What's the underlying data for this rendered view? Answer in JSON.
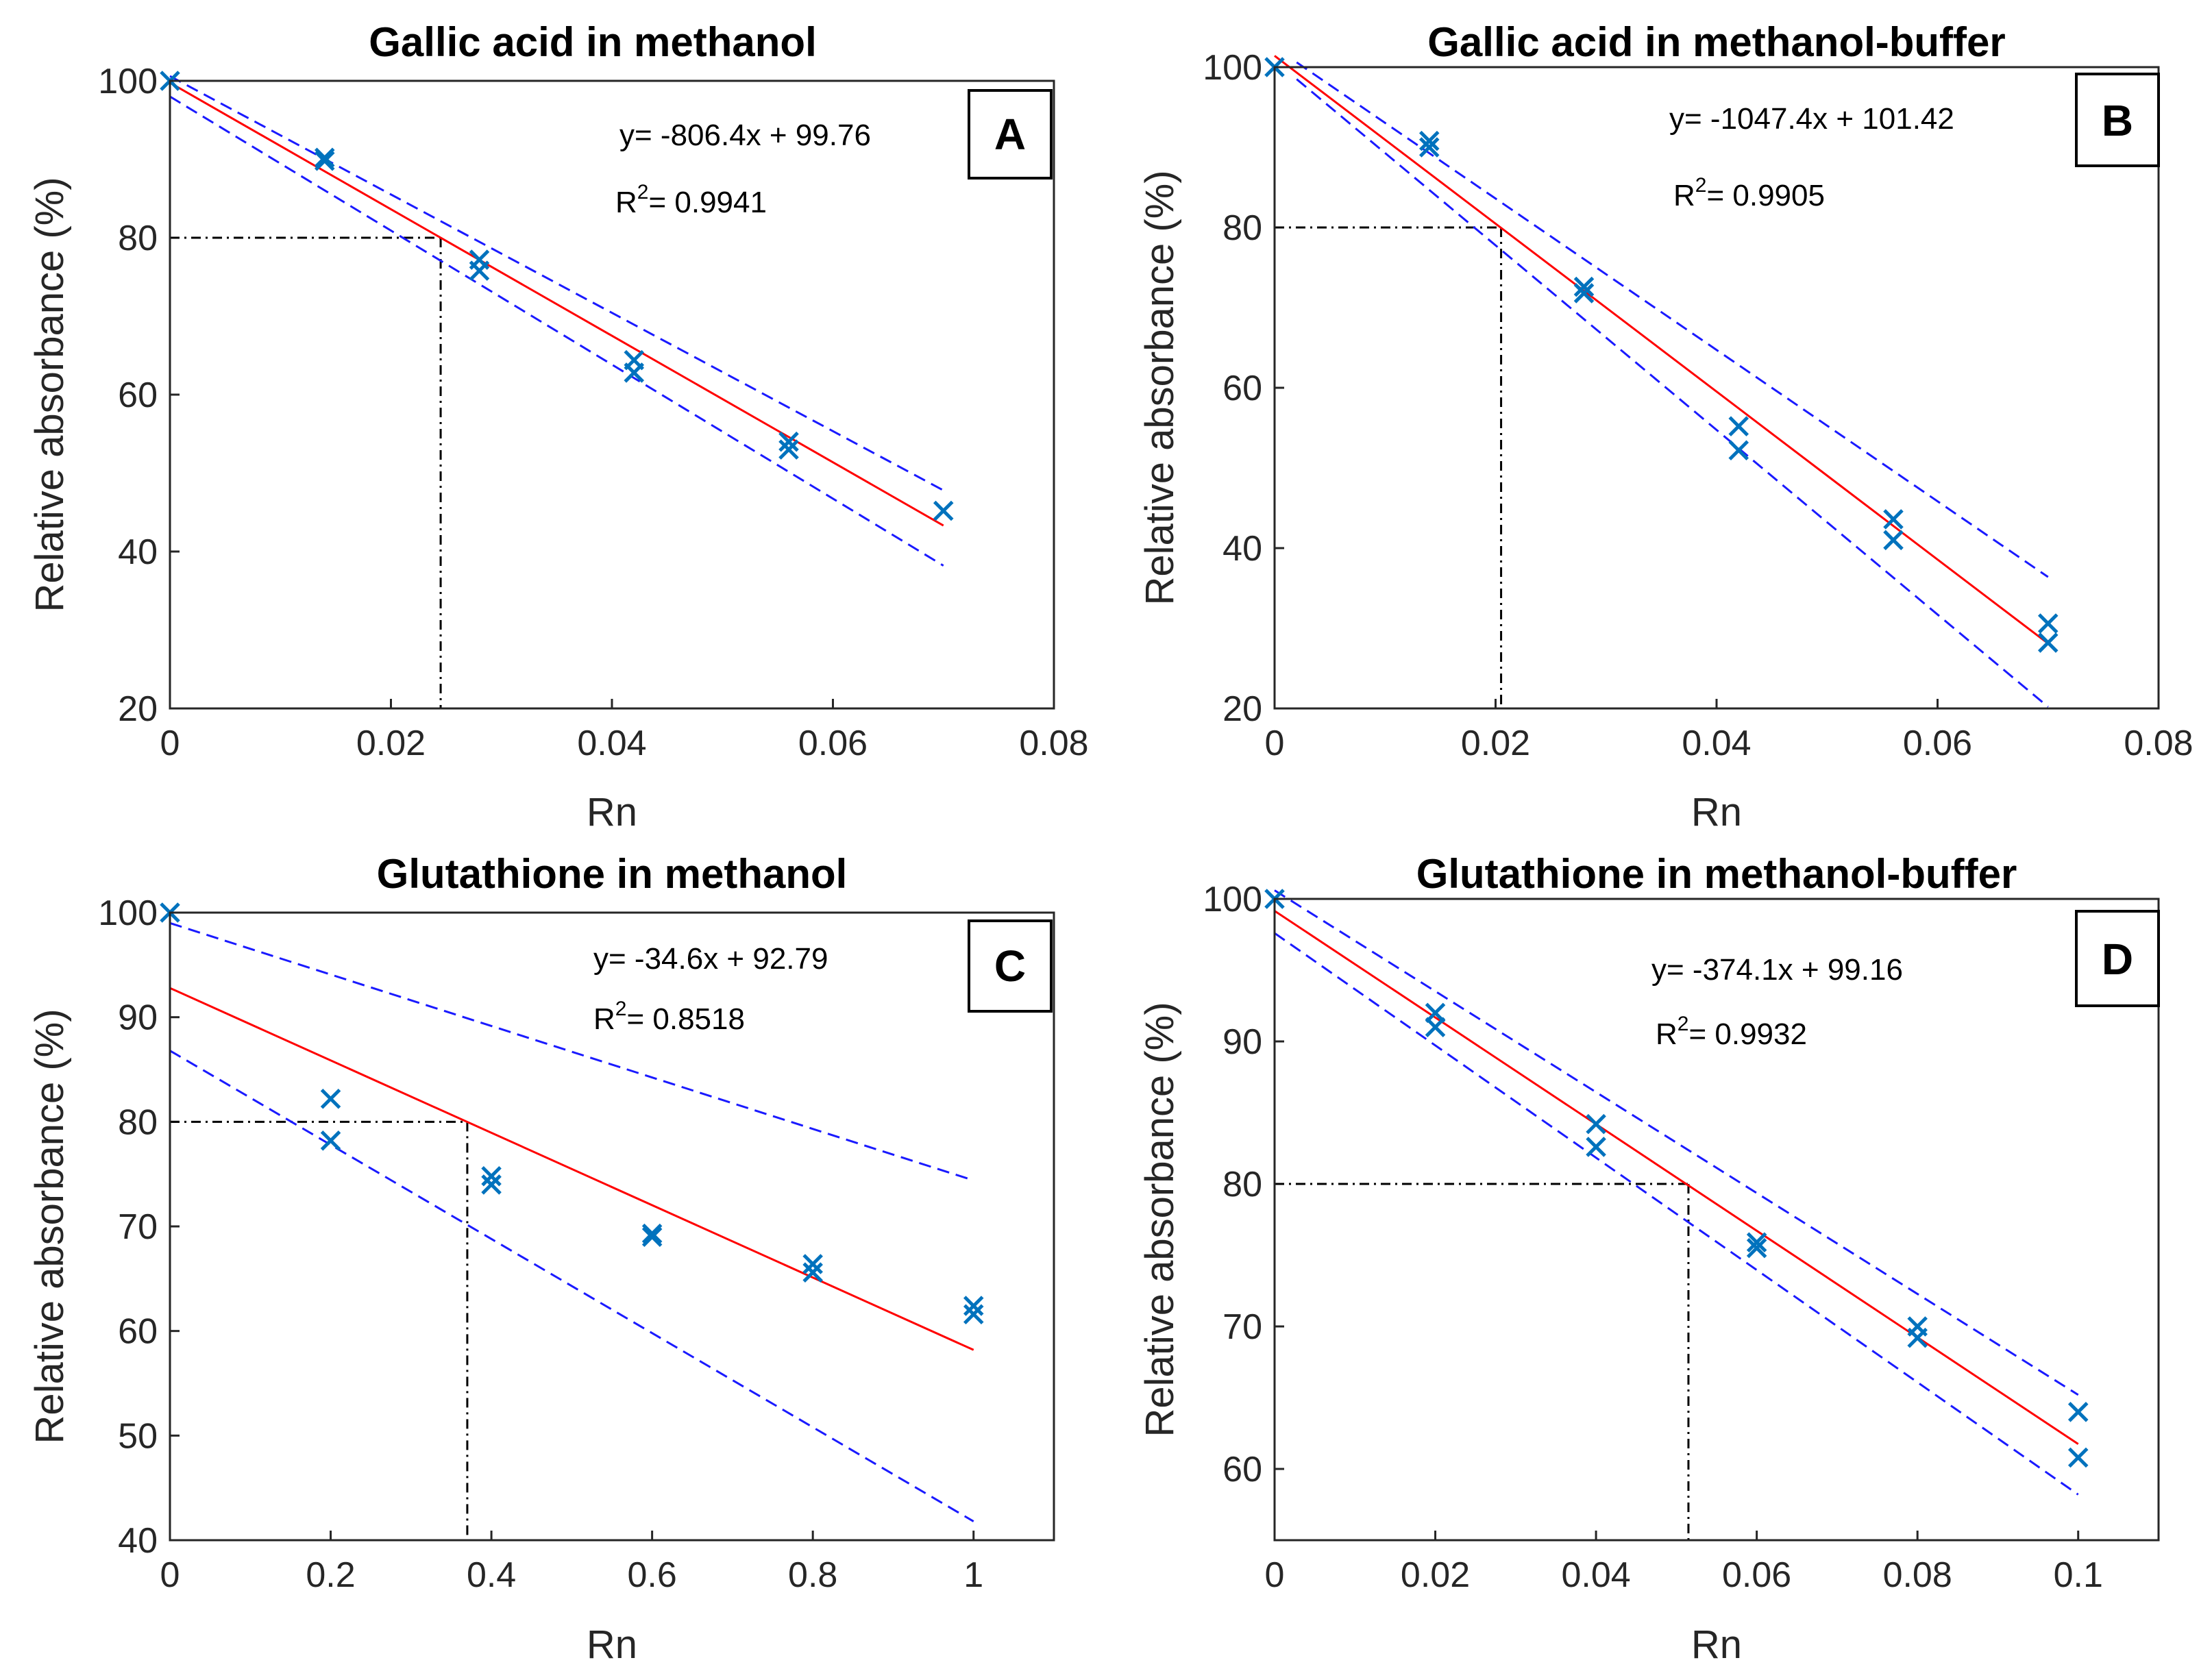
{
  "colors": {
    "marker": "#0072BD",
    "fit_line": "#ff0000",
    "bound_line": "#1a1aff",
    "guide_line": "#000000",
    "axis": "#262626"
  },
  "chart_data": [
    {
      "panel": "A",
      "type": "scatter",
      "title": "Gallic acid in methanol",
      "xlabel": "Rn",
      "ylabel": "Relative absorbance (%)",
      "xlim": [
        0,
        0.08
      ],
      "ylim": [
        20,
        100
      ],
      "xticks": [
        0,
        0.02,
        0.04,
        0.06,
        0.08
      ],
      "xtick_labels": [
        "0",
        "0.02",
        "0.04",
        "0.06",
        "0.08"
      ],
      "yticks": [
        20,
        40,
        60,
        80,
        100
      ],
      "ytick_labels": [
        "20",
        "40",
        "60",
        "80",
        "100"
      ],
      "points": [
        [
          0,
          100
        ],
        [
          0.014,
          90.2
        ],
        [
          0.014,
          89.8
        ],
        [
          0.028,
          77.2
        ],
        [
          0.028,
          75.8
        ],
        [
          0.042,
          64.4
        ],
        [
          0.042,
          62.8
        ],
        [
          0.056,
          54.0
        ],
        [
          0.056,
          53.0
        ],
        [
          0.07,
          45.2
        ]
      ],
      "fit": {
        "slope": -806.4,
        "intercept": 99.76,
        "x_range": [
          0,
          0.07
        ]
      },
      "lower_bound": [
        [
          0,
          98.0
        ],
        [
          0.07,
          38.2
        ]
      ],
      "upper_bound": [
        [
          0,
          100.6
        ],
        [
          0.07,
          47.8
        ]
      ],
      "guide": {
        "x": 0.0245,
        "y": 80
      },
      "annotations": {
        "equation": "y= -806.4x + 99.76",
        "r2_label": "R",
        "r2_sup": "2",
        "r2_value": "= 0.9941"
      }
    },
    {
      "panel": "B",
      "type": "scatter",
      "title": "Gallic acid in methanol-buffer",
      "xlabel": "Rn",
      "ylabel": "Relative absorbance (%)",
      "xlim": [
        0,
        0.08
      ],
      "ylim": [
        20,
        100
      ],
      "xticks": [
        0,
        0.02,
        0.04,
        0.06,
        0.08
      ],
      "xtick_labels": [
        "0",
        "0.02",
        "0.04",
        "0.06",
        "0.08"
      ],
      "yticks": [
        20,
        40,
        60,
        80,
        100
      ],
      "ytick_labels": [
        "20",
        "40",
        "60",
        "80",
        "100"
      ],
      "points": [
        [
          0,
          100
        ],
        [
          0.014,
          90.8
        ],
        [
          0.014,
          90.0
        ],
        [
          0.028,
          72.6
        ],
        [
          0.028,
          71.8
        ],
        [
          0.042,
          55.2
        ],
        [
          0.042,
          52.2
        ],
        [
          0.056,
          43.6
        ],
        [
          0.056,
          41.0
        ],
        [
          0.07,
          30.6
        ],
        [
          0.07,
          28.2
        ]
      ],
      "fit": {
        "slope": -1047.4,
        "intercept": 101.42,
        "x_range": [
          0,
          0.07
        ]
      },
      "lower_bound": [
        [
          0.002,
          98.5
        ],
        [
          0.07,
          20.2
        ]
      ],
      "upper_bound": [
        [
          0.002,
          100.6
        ],
        [
          0.07,
          36.4
        ]
      ],
      "guide": {
        "x": 0.0205,
        "y": 80
      },
      "annotations": {
        "equation": "y= -1047.4x + 101.42",
        "r2_label": "R",
        "r2_sup": "2",
        "r2_value": "= 0.9905"
      }
    },
    {
      "panel": "C",
      "type": "scatter",
      "title": "Glutathione in methanol",
      "xlabel": "Rn",
      "ylabel": "Relative absorbance (%)",
      "xlim": [
        0,
        1.1
      ],
      "ylim": [
        40,
        100
      ],
      "xticks": [
        0,
        0.2,
        0.4,
        0.6,
        0.8,
        1
      ],
      "xtick_labels": [
        "0",
        "0.2",
        "0.4",
        "0.6",
        "0.8",
        "1"
      ],
      "yticks": [
        40,
        50,
        60,
        70,
        80,
        90,
        100
      ],
      "ytick_labels": [
        "40",
        "50",
        "60",
        "70",
        "80",
        "90",
        "100"
      ],
      "points": [
        [
          0,
          100
        ],
        [
          0.2,
          82.2
        ],
        [
          0.2,
          78.2
        ],
        [
          0.4,
          74.8
        ],
        [
          0.4,
          74.0
        ],
        [
          0.6,
          69.3
        ],
        [
          0.6,
          69.0
        ],
        [
          0.8,
          66.4
        ],
        [
          0.8,
          65.6
        ],
        [
          1.0,
          62.4
        ],
        [
          1.0,
          61.6
        ]
      ],
      "fit": {
        "slope": -34.6,
        "intercept": 92.79,
        "x_range": [
          0,
          1.0
        ]
      },
      "lower_bound": [
        [
          0,
          86.8
        ],
        [
          1.0,
          41.8
        ]
      ],
      "upper_bound": [
        [
          0,
          99.0
        ],
        [
          1.0,
          74.4
        ]
      ],
      "guide": {
        "x": 0.37,
        "y": 80
      },
      "annotations": {
        "equation": "y= -34.6x + 92.79",
        "r2_label": "R",
        "r2_sup": "2",
        "r2_value": "= 0.8518"
      }
    },
    {
      "panel": "D",
      "type": "scatter",
      "title": "Glutathione in methanol-buffer",
      "xlabel": "Rn",
      "ylabel": "Relative absorbance (%)",
      "xlim": [
        0,
        0.11
      ],
      "ylim": [
        55,
        100
      ],
      "xticks": [
        0,
        0.02,
        0.04,
        0.06,
        0.08,
        0.1
      ],
      "xtick_labels": [
        "0",
        "0.02",
        "0.04",
        "0.06",
        "0.08",
        "0.1"
      ],
      "yticks": [
        60,
        70,
        80,
        90,
        100
      ],
      "ytick_labels": [
        "60",
        "70",
        "80",
        "90",
        "100"
      ],
      "points": [
        [
          0,
          100
        ],
        [
          0.02,
          92.0
        ],
        [
          0.02,
          91.0
        ],
        [
          0.04,
          84.2
        ],
        [
          0.04,
          82.6
        ],
        [
          0.06,
          75.9
        ],
        [
          0.06,
          75.5
        ],
        [
          0.08,
          70.0
        ],
        [
          0.08,
          69.2
        ],
        [
          0.1,
          64.0
        ],
        [
          0.1,
          60.8
        ]
      ],
      "fit": {
        "slope": -374.1,
        "intercept": 99.16,
        "x_range": [
          0,
          0.1
        ]
      },
      "lower_bound": [
        [
          0,
          97.6
        ],
        [
          0.1,
          58.2
        ]
      ],
      "upper_bound": [
        [
          0,
          100.6
        ],
        [
          0.1,
          65.2
        ]
      ],
      "guide": {
        "x": 0.0515,
        "y": 80
      },
      "annotations": {
        "equation": "y= -374.1x + 99.16",
        "r2_label": "R",
        "r2_sup": "2",
        "r2_value": "= 0.9932"
      }
    }
  ]
}
